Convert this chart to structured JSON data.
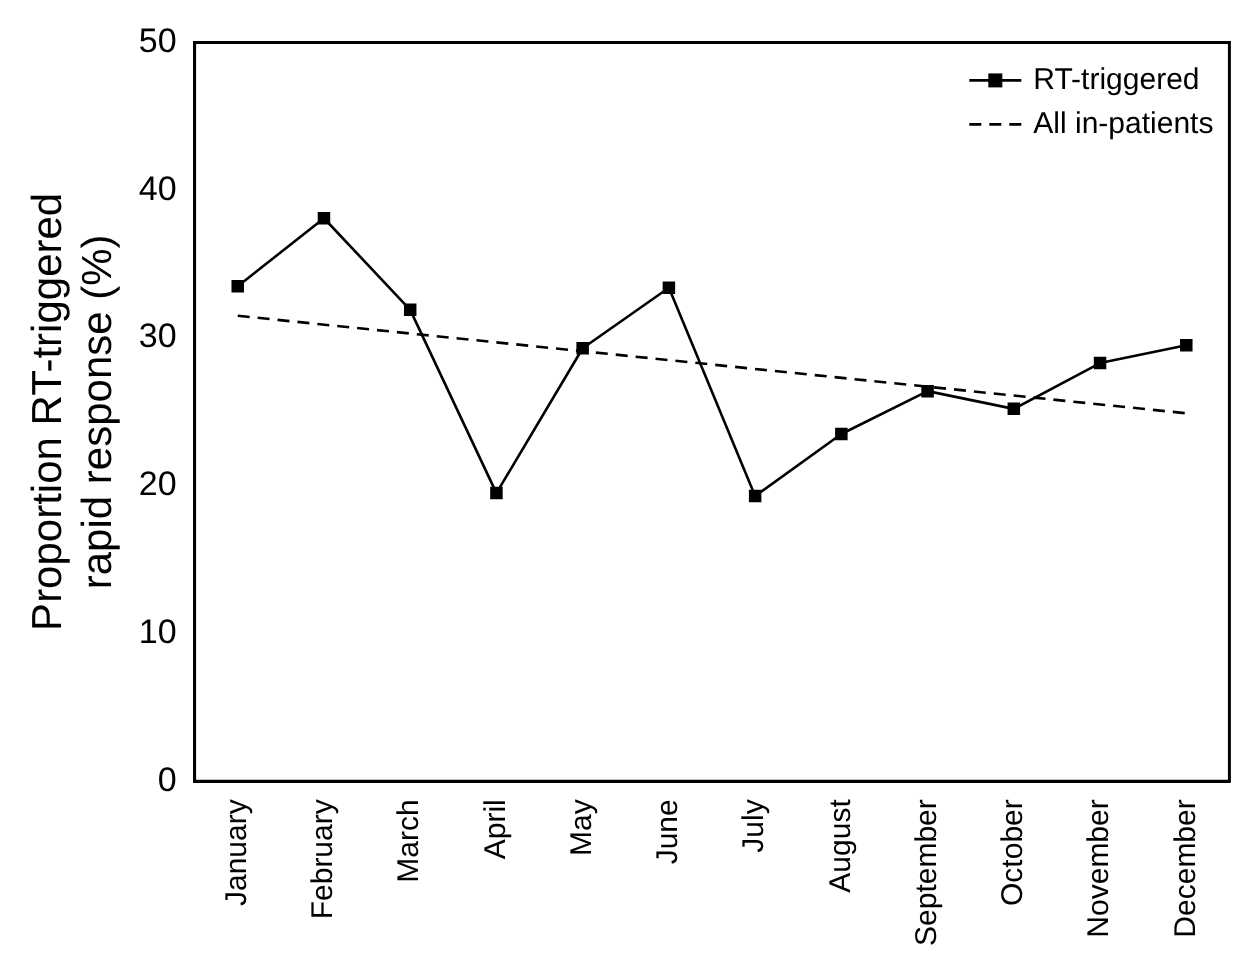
{
  "chart_data": {
    "type": "line",
    "ylabel": "Proportion RT-triggered\nrapid response (%)",
    "categories": [
      "January",
      "February",
      "March",
      "April",
      "May",
      "June",
      "July",
      "August",
      "September",
      "October",
      "November",
      "December"
    ],
    "series": [
      {
        "name": "RT-triggered",
        "color": "#000000",
        "marker": "square",
        "line_style": "solid",
        "values": [
          33.5,
          38.1,
          31.9,
          19.5,
          29.3,
          33.4,
          19.3,
          23.5,
          26.4,
          25.2,
          28.3,
          29.5
        ]
      },
      {
        "name": "All in-patients",
        "color": "#000000",
        "marker": "none",
        "line_style": "dashed",
        "x": [
          "January",
          "December"
        ],
        "values": [
          31.5,
          24.9
        ]
      }
    ],
    "ylim": [
      0,
      50
    ],
    "yticks": [
      0,
      10,
      20,
      30,
      40,
      50
    ],
    "grid": false,
    "legend": "top right"
  }
}
